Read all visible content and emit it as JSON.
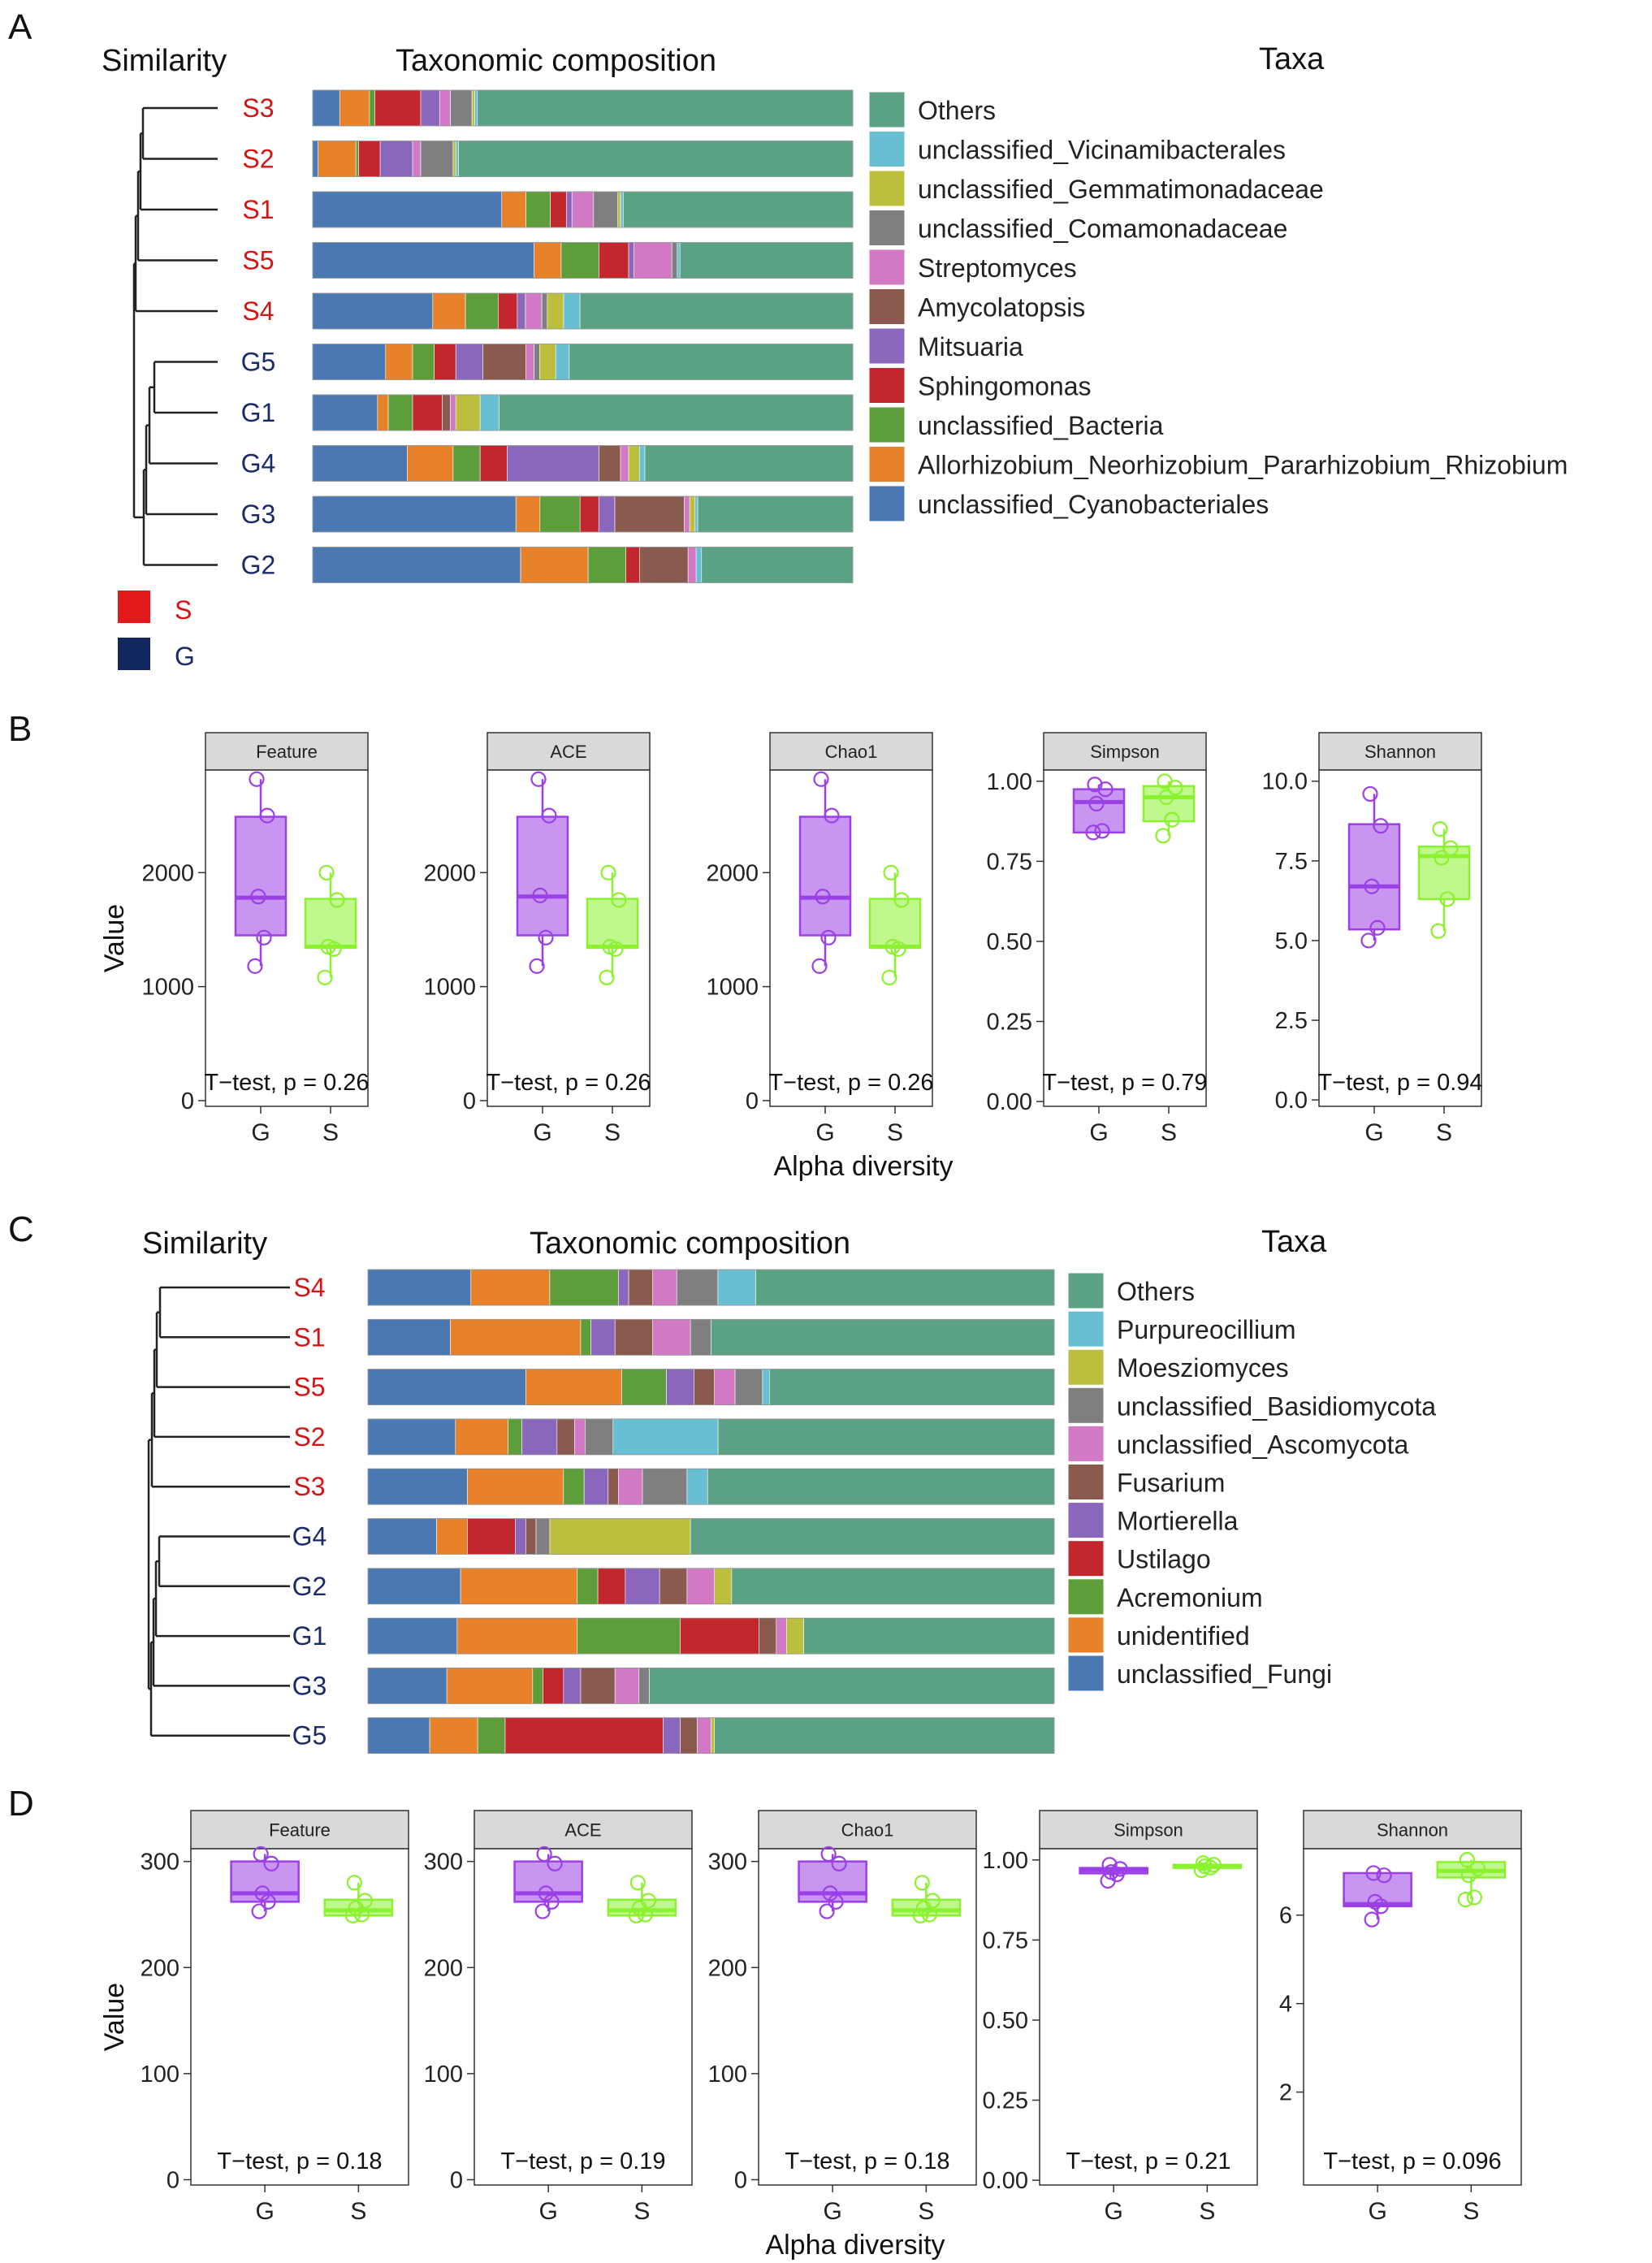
{
  "colors": {
    "taxa": [
      "#5aa283",
      "#69bfd2",
      "#bcbe3e",
      "#7f7f7f",
      "#d279c6",
      "#8b5a4e",
      "#8b66bd",
      "#c1272d",
      "#5e9e3a",
      "#e7812a",
      "#4a78b2"
    ],
    "S": "#d41515",
    "G": "#1b2b68",
    "g_box": "#9b3fe6",
    "s_box": "#8bf22e"
  },
  "panels": {
    "A": {
      "letter": "A",
      "similarity_title": "Similarity",
      "composition_title": "Taxonomic composition",
      "taxa_title": "Taxa",
      "legend_groups": [
        {
          "name": "S",
          "label": "S"
        },
        {
          "name": "G",
          "label": "G"
        }
      ]
    },
    "B": {
      "letter": "B"
    },
    "C": {
      "letter": "C",
      "similarity_title": "Similarity",
      "composition_title": "Taxonomic composition",
      "taxa_title": "Taxa"
    },
    "D": {
      "letter": "D"
    }
  },
  "chart_data": [
    {
      "id": "A",
      "type": "bar",
      "orientation": "horizontal-stacked",
      "title": "Taxonomic composition",
      "samples": [
        "S3",
        "S2",
        "S1",
        "S5",
        "S4",
        "G5",
        "G1",
        "G4",
        "G3",
        "G2"
      ],
      "groups": [
        "S",
        "S",
        "S",
        "S",
        "S",
        "G",
        "G",
        "G",
        "G",
        "G"
      ],
      "legend": [
        "Others",
        "unclassified_Vicinamibacterales",
        "unclassified_Gemmatimonadaceae",
        "unclassified_Comamonadaceae",
        "Streptomyces",
        "Amycolatopsis",
        "Mitsuaria",
        "Sphingomonas",
        "unclassified_Bacteria",
        "Allorhizobium_Neorhizobium_Pararhizobium_Rhizobium",
        "unclassified_Cyanobacteriales"
      ],
      "stack_order": [
        "unclassified_Cyanobacteriales",
        "Allorhizobium_Neorhizobium_Pararhizobium_Rhizobium",
        "unclassified_Bacteria",
        "Sphingomonas",
        "Mitsuaria",
        "Amycolatopsis",
        "Streptomyces",
        "unclassified_Comamonadaceae",
        "unclassified_Gemmatimonadaceae",
        "unclassified_Vicinamibacterales",
        "Others"
      ],
      "values": [
        [
          5,
          5.5,
          1,
          8.5,
          3.5,
          0,
          2,
          4,
          0.5,
          0.5,
          69.5
        ],
        [
          1,
          7,
          0.5,
          4,
          6,
          0,
          1.5,
          6,
          0.5,
          0.5,
          73
        ],
        [
          35,
          4.5,
          4.5,
          3,
          1,
          0,
          4,
          4.5,
          0.5,
          0.5,
          42.5
        ],
        [
          41,
          5,
          7,
          5.5,
          1,
          0,
          7,
          1,
          0,
          0.5,
          32
        ],
        [
          22,
          6,
          6,
          3.5,
          1.5,
          0,
          3,
          1,
          3,
          3,
          50
        ],
        [
          13.5,
          5,
          4,
          4,
          5,
          8,
          1.5,
          1,
          3,
          2.5,
          52.5
        ],
        [
          12,
          2,
          4.5,
          5.5,
          0,
          1.5,
          1,
          0,
          4.5,
          3.5,
          65.5
        ],
        [
          17.5,
          8.5,
          5,
          5,
          17,
          4,
          1.5,
          0,
          2,
          1,
          38.5
        ],
        [
          38,
          4.5,
          7.5,
          3.5,
          3,
          13,
          1,
          0,
          1,
          0.5,
          29
        ],
        [
          38.5,
          12.5,
          7,
          2.5,
          0,
          9,
          1.5,
          0,
          0,
          1,
          28
        ]
      ]
    },
    {
      "id": "B",
      "type": "box",
      "xlabel": "Alpha diversity",
      "ylabel": "Value",
      "categories": [
        "G",
        "S"
      ],
      "facets": [
        {
          "title": "Feature",
          "ylim": [
            -50,
            2900
          ],
          "ticks": [
            0,
            1000,
            2000
          ],
          "tick_labels": [
            "0",
            "1000",
            "2000"
          ],
          "G": {
            "q1": 1450,
            "median": 1780,
            "q3": 2490,
            "whisker_low": 1180,
            "whisker_high": 2820,
            "points": [
              1180,
              1430,
              1790,
              2500,
              2820
            ]
          },
          "S": {
            "q1": 1340,
            "median": 1350,
            "q3": 1770,
            "whisker_low": 1080,
            "whisker_high": 2000,
            "points": [
              1080,
              1330,
              1350,
              1760,
              2000
            ]
          },
          "annotation": "T−test, p = 0.26"
        },
        {
          "title": "ACE",
          "ylim": [
            -50,
            2900
          ],
          "ticks": [
            0,
            1000,
            2000
          ],
          "tick_labels": [
            "0",
            "1000",
            "2000"
          ],
          "G": {
            "q1": 1450,
            "median": 1790,
            "q3": 2490,
            "whisker_low": 1180,
            "whisker_high": 2820,
            "points": [
              1180,
              1430,
              1800,
              2500,
              2820
            ]
          },
          "S": {
            "q1": 1340,
            "median": 1350,
            "q3": 1770,
            "whisker_low": 1080,
            "whisker_high": 2000,
            "points": [
              1080,
              1330,
              1350,
              1760,
              2000
            ]
          },
          "annotation": "T−test, p = 0.26"
        },
        {
          "title": "Chao1",
          "ylim": [
            -50,
            2900
          ],
          "ticks": [
            0,
            1000,
            2000
          ],
          "tick_labels": [
            "0",
            "1000",
            "2000"
          ],
          "G": {
            "q1": 1450,
            "median": 1780,
            "q3": 2490,
            "whisker_low": 1180,
            "whisker_high": 2820,
            "points": [
              1180,
              1430,
              1790,
              2500,
              2820
            ]
          },
          "S": {
            "q1": 1340,
            "median": 1350,
            "q3": 1770,
            "whisker_low": 1080,
            "whisker_high": 2000,
            "points": [
              1080,
              1330,
              1350,
              1760,
              2000
            ]
          },
          "annotation": "T−test, p = 0.26"
        },
        {
          "title": "Simpson",
          "ylim": [
            -0.015,
            1.035
          ],
          "ticks": [
            0,
            0.25,
            0.5,
            0.75,
            1
          ],
          "tick_labels": [
            "0.00",
            "0.25",
            "0.50",
            "0.75",
            "1.00"
          ],
          "G": {
            "q1": 0.84,
            "median": 0.935,
            "q3": 0.975,
            "whisker_low": 0.84,
            "whisker_high": 0.99,
            "points": [
              0.84,
              0.845,
              0.93,
              0.975,
              0.99
            ]
          },
          "S": {
            "q1": 0.875,
            "median": 0.95,
            "q3": 0.985,
            "whisker_low": 0.83,
            "whisker_high": 1.0,
            "points": [
              0.83,
              0.88,
              0.95,
              0.98,
              1.0
            ]
          },
          "annotation": "T−test, p = 0.79"
        },
        {
          "title": "Shannon",
          "ylim": [
            -0.2,
            10.35
          ],
          "ticks": [
            0,
            2.5,
            5,
            7.5,
            10
          ],
          "tick_labels": [
            "0.0",
            "2.5",
            "5.0",
            "7.5",
            "10.0"
          ],
          "G": {
            "q1": 5.35,
            "median": 6.7,
            "q3": 8.65,
            "whisker_low": 5.0,
            "whisker_high": 9.6,
            "points": [
              5.0,
              5.4,
              6.7,
              8.6,
              9.6
            ]
          },
          "S": {
            "q1": 6.3,
            "median": 7.65,
            "q3": 7.95,
            "whisker_low": 5.3,
            "whisker_high": 8.5,
            "points": [
              5.3,
              6.3,
              7.6,
              7.9,
              8.5
            ]
          },
          "annotation": "T−test, p = 0.94"
        }
      ]
    },
    {
      "id": "C",
      "type": "bar",
      "orientation": "horizontal-stacked",
      "title": "Taxonomic composition",
      "samples": [
        "S4",
        "S1",
        "S5",
        "S2",
        "S3",
        "G4",
        "G2",
        "G1",
        "G3",
        "G5"
      ],
      "groups": [
        "S",
        "S",
        "S",
        "S",
        "S",
        "G",
        "G",
        "G",
        "G",
        "G"
      ],
      "legend": [
        "Others",
        "Purpureocillium",
        "Moesziomyces",
        "unclassified_Basidiomycota",
        "unclassified_Ascomycota",
        "Fusarium",
        "Mortierella",
        "Ustilago",
        "Acremonium",
        "unidentified",
        "unclassified_Fungi"
      ],
      "stack_order": [
        "unclassified_Fungi",
        "unidentified",
        "Acremonium",
        "Ustilago",
        "Mortierella",
        "Fusarium",
        "unclassified_Ascomycota",
        "unclassified_Basidiomycota",
        "Moesziomyces",
        "Purpureocillium",
        "Others"
      ],
      "values": [
        [
          15,
          11.5,
          10,
          0,
          1.5,
          3.5,
          3.5,
          6,
          0,
          5.5,
          43.5
        ],
        [
          12,
          19,
          1.5,
          0,
          3.5,
          5.5,
          5.5,
          3,
          0,
          0,
          50
        ],
        [
          23,
          14,
          6.5,
          0,
          4,
          3,
          3,
          4,
          0,
          1,
          41.5
        ],
        [
          12.5,
          7.5,
          2,
          0,
          5,
          2.5,
          1.5,
          4,
          0,
          15,
          48
        ],
        [
          14.5,
          14,
          3,
          0,
          3.5,
          1.5,
          3.5,
          6.5,
          0,
          3,
          50.5
        ],
        [
          10,
          4.5,
          0,
          7,
          1.5,
          1.5,
          0,
          2,
          20.5,
          0,
          53
        ],
        [
          13.5,
          17,
          3,
          4,
          5,
          4,
          4,
          0,
          2.5,
          0,
          47
        ],
        [
          13,
          17.5,
          15,
          11.5,
          0,
          2.5,
          1.5,
          0,
          2.5,
          0,
          36.5
        ],
        [
          11.5,
          12.5,
          1.5,
          3,
          2.5,
          5,
          3.5,
          1.5,
          0,
          0,
          59
        ],
        [
          9,
          7,
          4,
          23,
          2.5,
          2.5,
          2,
          0,
          0.5,
          0,
          49.5
        ]
      ]
    },
    {
      "id": "D",
      "type": "box",
      "xlabel": "Alpha diversity",
      "ylabel": "Value",
      "categories": [
        "G",
        "S"
      ],
      "facets": [
        {
          "title": "Feature",
          "ylim": [
            -5,
            312
          ],
          "ticks": [
            0,
            100,
            200,
            300
          ],
          "tick_labels": [
            "0",
            "100",
            "200",
            "300"
          ],
          "G": {
            "q1": 262,
            "median": 270,
            "q3": 300,
            "whisker_low": 253,
            "whisker_high": 307,
            "points": [
              253,
              262,
              270,
              298,
              307
            ]
          },
          "S": {
            "q1": 249,
            "median": 254,
            "q3": 264,
            "whisker_low": 249,
            "whisker_high": 280,
            "points": [
              249,
              250,
              256,
              263,
              280
            ]
          },
          "annotation": "T−test, p = 0.18"
        },
        {
          "title": "ACE",
          "ylim": [
            -5,
            312
          ],
          "ticks": [
            0,
            100,
            200,
            300
          ],
          "tick_labels": [
            "0",
            "100",
            "200",
            "300"
          ],
          "G": {
            "q1": 262,
            "median": 270,
            "q3": 300,
            "whisker_low": 253,
            "whisker_high": 307,
            "points": [
              253,
              262,
              270,
              298,
              307
            ]
          },
          "S": {
            "q1": 249,
            "median": 254,
            "q3": 264,
            "whisker_low": 249,
            "whisker_high": 280,
            "points": [
              249,
              250,
              256,
              263,
              280
            ]
          },
          "annotation": "T−test, p = 0.19"
        },
        {
          "title": "Chao1",
          "ylim": [
            -5,
            312
          ],
          "ticks": [
            0,
            100,
            200,
            300
          ],
          "tick_labels": [
            "0",
            "100",
            "200",
            "300"
          ],
          "G": {
            "q1": 262,
            "median": 270,
            "q3": 300,
            "whisker_low": 253,
            "whisker_high": 307,
            "points": [
              253,
              262,
              270,
              298,
              307
            ]
          },
          "S": {
            "q1": 249,
            "median": 254,
            "q3": 264,
            "whisker_low": 249,
            "whisker_high": 280,
            "points": [
              249,
              250,
              256,
              263,
              280
            ]
          },
          "annotation": "T−test, p = 0.18"
        },
        {
          "title": "Simpson",
          "ylim": [
            -0.015,
            1.035
          ],
          "ticks": [
            0,
            0.25,
            0.5,
            0.75,
            1
          ],
          "tick_labels": [
            "0.00",
            "0.25",
            "0.50",
            "0.75",
            "1.00"
          ],
          "G": {
            "q1": 0.958,
            "median": 0.968,
            "q3": 0.975,
            "whisker_low": 0.935,
            "whisker_high": 0.985,
            "points": [
              0.935,
              0.955,
              0.962,
              0.972,
              0.985
            ]
          },
          "S": {
            "q1": 0.975,
            "median": 0.98,
            "q3": 0.985,
            "whisker_low": 0.968,
            "whisker_high": 0.99,
            "points": [
              0.968,
              0.976,
              0.98,
              0.985,
              0.99
            ]
          },
          "annotation": "T−test, p = 0.21"
        },
        {
          "title": "Shannon",
          "ylim": [
            -0.1,
            7.5
          ],
          "ticks": [
            2,
            4,
            6
          ],
          "tick_labels": [
            "2",
            "4",
            "6"
          ],
          "G": {
            "q1": 6.2,
            "median": 6.25,
            "q3": 6.95,
            "whisker_low": 5.9,
            "whisker_high": 6.95,
            "points": [
              5.9,
              6.2,
              6.3,
              6.9,
              6.95
            ]
          },
          "S": {
            "q1": 6.85,
            "median": 7.0,
            "q3": 7.2,
            "whisker_low": 6.35,
            "whisker_high": 7.25,
            "points": [
              6.35,
              6.4,
              6.9,
              7.05,
              7.25
            ]
          },
          "annotation": "T−test, p = 0.096"
        }
      ]
    }
  ]
}
